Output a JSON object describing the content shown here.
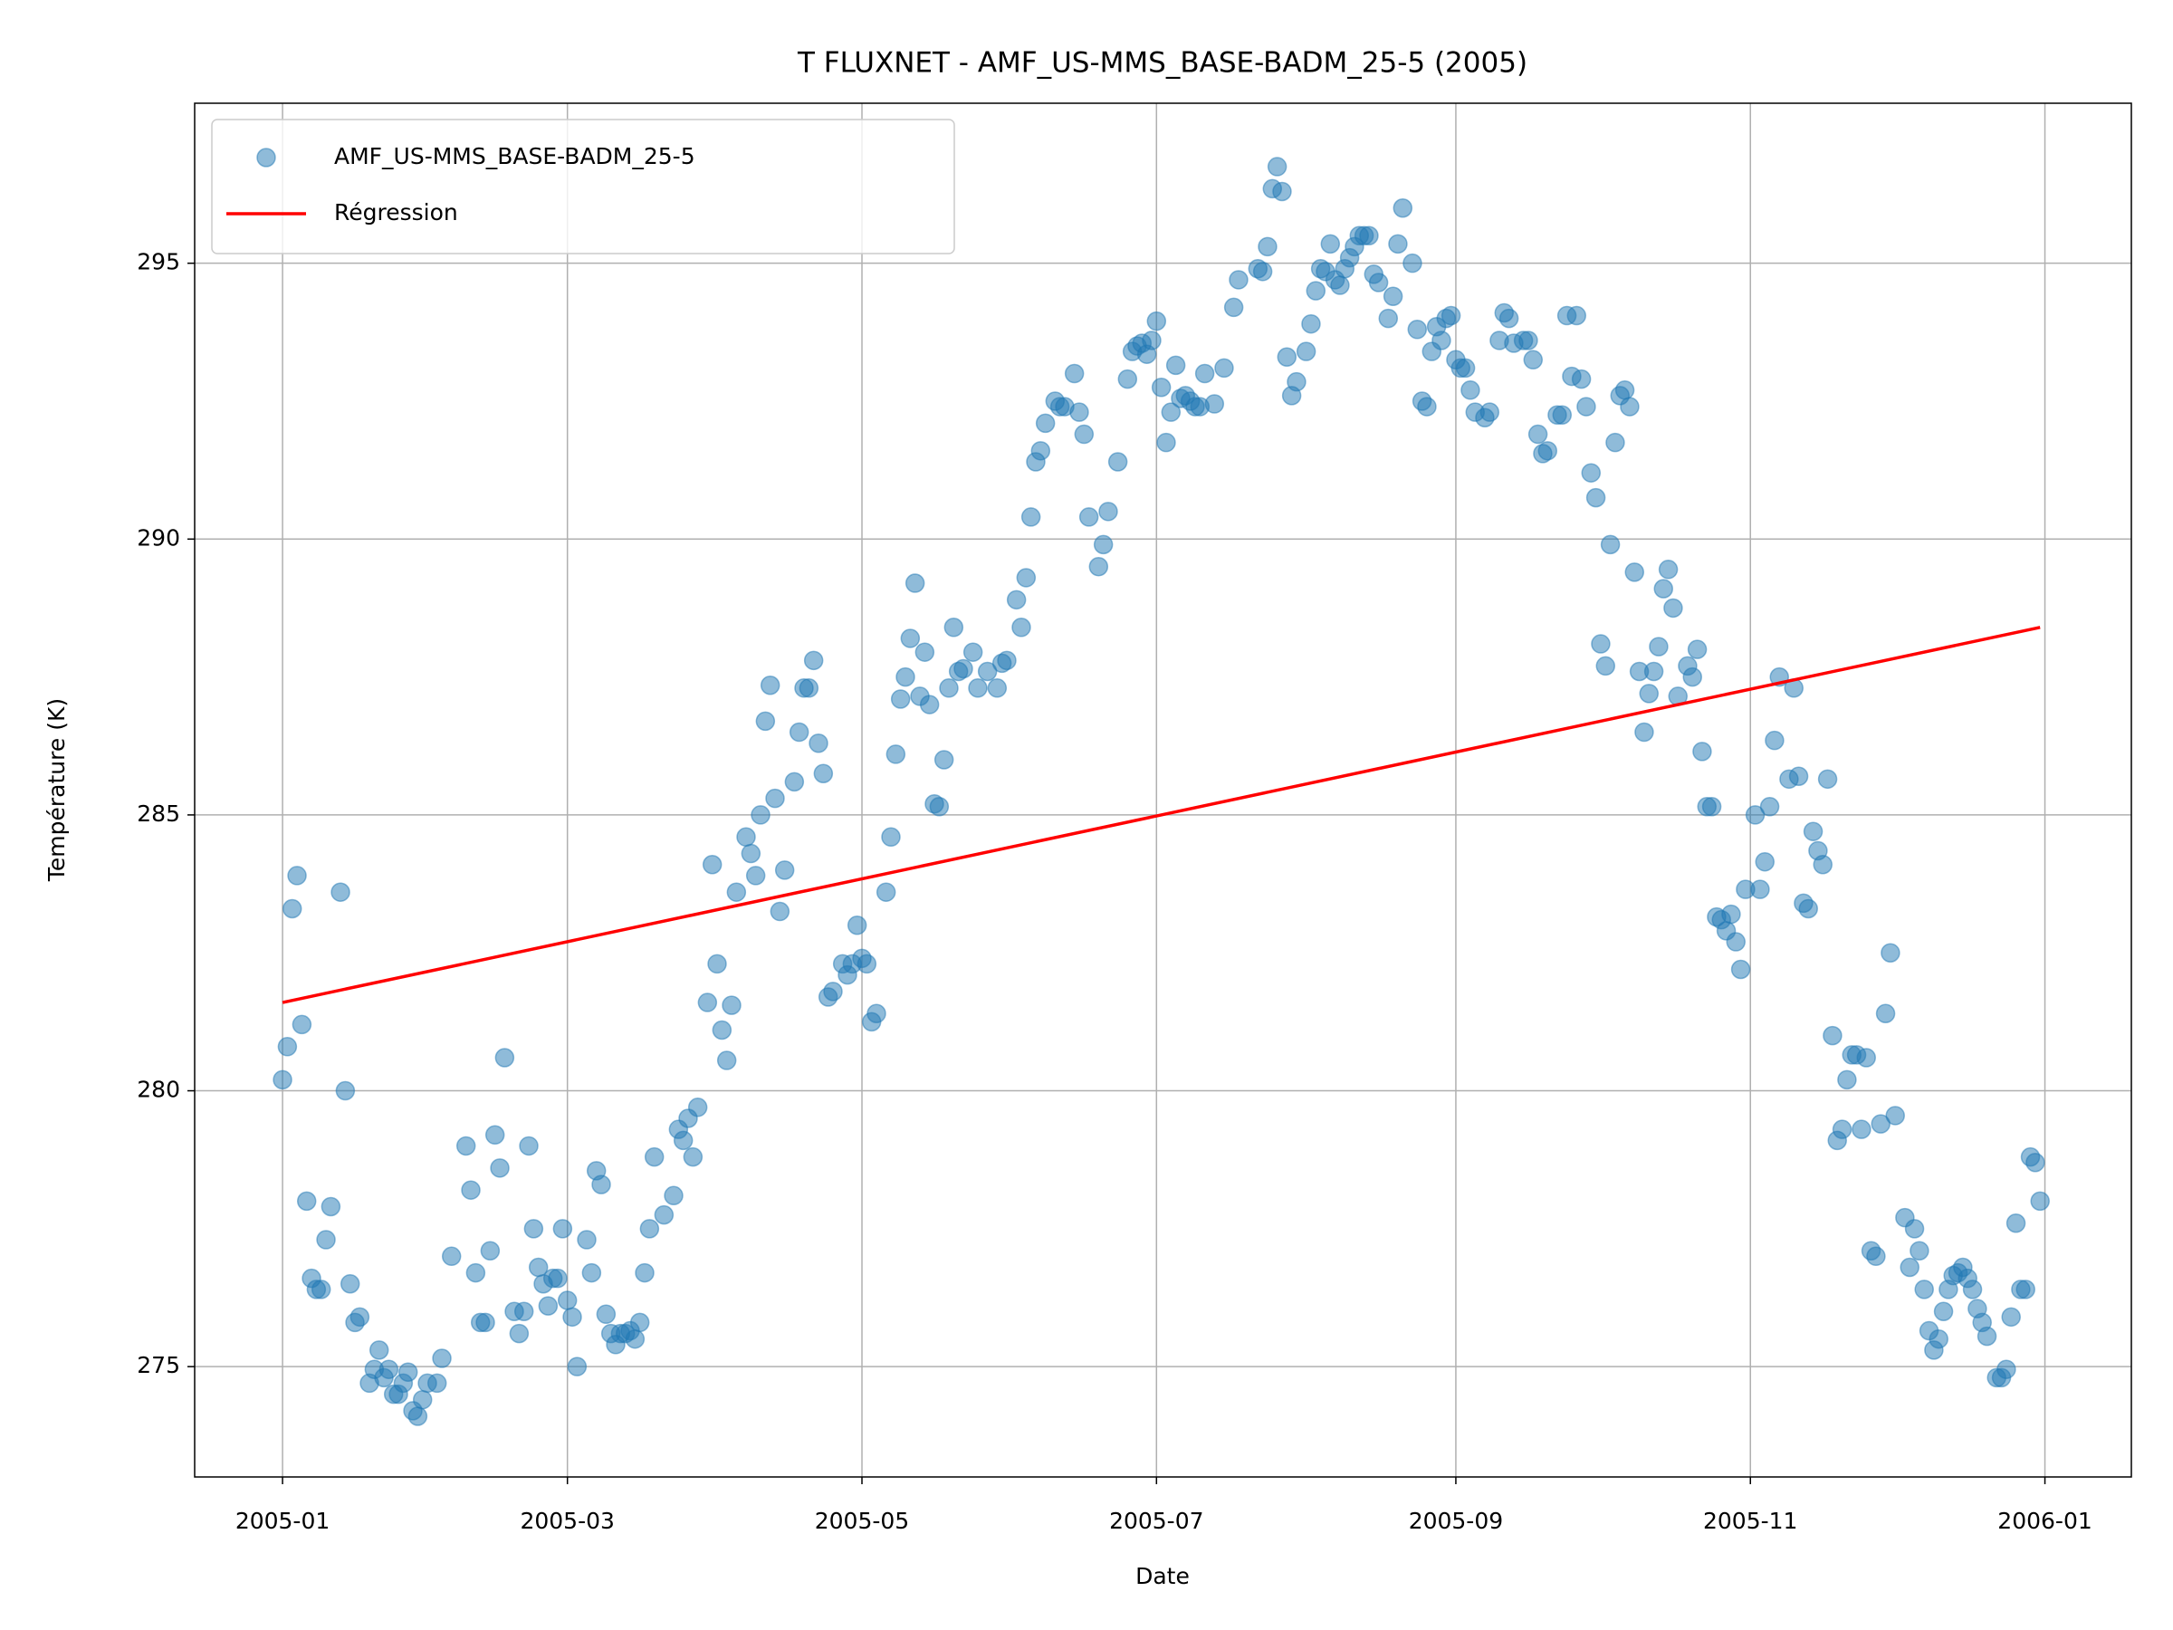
{
  "chart_data": {
    "type": "scatter",
    "title": "T FLUXNET - AMF_US-MMS_BASE-BADM_25-5 (2005)",
    "xlabel": "Date",
    "ylabel": "Température (K)",
    "xlim": [
      -18.2,
      382.9
    ],
    "ylim": [
      273.0,
      297.9
    ],
    "xticks": [
      {
        "value": 0,
        "label": "2005-01"
      },
      {
        "value": 59,
        "label": "2005-03"
      },
      {
        "value": 120,
        "label": "2005-05"
      },
      {
        "value": 181,
        "label": "2005-07"
      },
      {
        "value": 243,
        "label": "2005-09"
      },
      {
        "value": 304,
        "label": "2005-11"
      },
      {
        "value": 365,
        "label": "2006-01"
      }
    ],
    "yticks": [
      275,
      280,
      285,
      290,
      295
    ],
    "grid": true,
    "legend": "upper left",
    "series": [
      {
        "name": "AMF_US-MMS_BASE-BADM_25-5",
        "color": "#1f77b4",
        "x": [
          0,
          1,
          2,
          3,
          4,
          5,
          6,
          7,
          8,
          9,
          10,
          12,
          13,
          14,
          15,
          16,
          18,
          19,
          20,
          21,
          22,
          23,
          24,
          25,
          26,
          27,
          28,
          29,
          30,
          32,
          33,
          35,
          38,
          39,
          40,
          41,
          42,
          43,
          44,
          45,
          46,
          48,
          49,
          50,
          51,
          52,
          53,
          54,
          55,
          56,
          57,
          58,
          59,
          60,
          61,
          63,
          64,
          65,
          66,
          67,
          68,
          69,
          70,
          71,
          72,
          73,
          74,
          75,
          76,
          77,
          79,
          81,
          82,
          83,
          84,
          85,
          86,
          88,
          89,
          90,
          91,
          92,
          93,
          94,
          96,
          97,
          98,
          99,
          100,
          101,
          102,
          103,
          104,
          106,
          107,
          108,
          109,
          110,
          111,
          112,
          113,
          114,
          116,
          117,
          118,
          119,
          120,
          121,
          122,
          123,
          125,
          126,
          127,
          128,
          129,
          130,
          131,
          132,
          133,
          134,
          135,
          136,
          137,
          138,
          139,
          140,
          141,
          143,
          144,
          146,
          148,
          149,
          150,
          152,
          153,
          154,
          155,
          156,
          157,
          158,
          160,
          161,
          162,
          164,
          165,
          166,
          167,
          169,
          170,
          171,
          173,
          175,
          176,
          177,
          178,
          179,
          180,
          181,
          182,
          183,
          184,
          185,
          186,
          187,
          188,
          189,
          190,
          191,
          193,
          195,
          197,
          198,
          202,
          203,
          204,
          205,
          206,
          207,
          208,
          209,
          210,
          212,
          213,
          214,
          215,
          216,
          217,
          218,
          219,
          220,
          221,
          222,
          223,
          224,
          225,
          226,
          227,
          229,
          230,
          231,
          232,
          234,
          235,
          236,
          237,
          238,
          239,
          240,
          241,
          242,
          243,
          244,
          245,
          246,
          247,
          249,
          250,
          252,
          253,
          254,
          255,
          257,
          258,
          259,
          260,
          261,
          262,
          264,
          265,
          266,
          267,
          268,
          269,
          270,
          271,
          272,
          273,
          274,
          275,
          276,
          277,
          278,
          279,
          280,
          281,
          282,
          283,
          284,
          285,
          286,
          287,
          288,
          289,
          291,
          292,
          293,
          294,
          295,
          296,
          297,
          298,
          299,
          300,
          301,
          302,
          303,
          305,
          306,
          307,
          308,
          309,
          310,
          312,
          313,
          314,
          315,
          316,
          317,
          318,
          319,
          320,
          321,
          322,
          323,
          324,
          325,
          326,
          327,
          328,
          329,
          330,
          331,
          332,
          333,
          334,
          336,
          337,
          338,
          339,
          340,
          341,
          342,
          343,
          344,
          345,
          346,
          347,
          348,
          349,
          350,
          351,
          352,
          353,
          355,
          356,
          357,
          358,
          359,
          360,
          361,
          362,
          363,
          364
        ],
        "values": [
          280.2,
          280.8,
          283.3,
          283.9,
          281.2,
          278.0,
          276.6,
          276.4,
          276.4,
          277.3,
          277.9,
          283.6,
          280.0,
          276.5,
          275.8,
          275.9,
          274.7,
          274.95,
          275.3,
          274.8,
          274.95,
          274.5,
          274.5,
          274.7,
          274.9,
          274.2,
          274.1,
          274.4,
          274.7,
          274.7,
          275.15,
          277.0,
          279.0,
          278.2,
          276.7,
          275.8,
          275.8,
          277.1,
          279.2,
          278.6,
          280.6,
          276.0,
          275.6,
          276.0,
          279.0,
          277.5,
          276.8,
          276.5,
          276.1,
          276.6,
          276.6,
          277.5,
          276.2,
          275.9,
          275.0,
          277.3,
          276.7,
          278.55,
          278.3,
          275.95,
          275.6,
          275.4,
          275.6,
          275.6,
          275.65,
          275.5,
          275.8,
          276.7,
          277.5,
          278.8,
          277.75,
          278.1,
          279.3,
          279.1,
          279.5,
          278.8,
          279.7,
          281.6,
          284.1,
          282.3,
          281.1,
          280.55,
          281.55,
          283.6,
          284.6,
          284.3,
          283.9,
          285.0,
          286.7,
          287.35,
          285.3,
          283.25,
          284.0,
          285.6,
          286.5,
          287.3,
          287.3,
          287.8,
          286.3,
          285.75,
          281.7,
          281.8,
          282.3,
          282.1,
          282.3,
          283.0,
          282.4,
          282.3,
          281.25,
          281.4,
          283.6,
          284.6,
          286.1,
          287.1,
          287.5,
          288.2,
          289.2,
          287.15,
          287.95,
          287.0,
          285.2,
          285.15,
          286.0,
          287.3,
          288.4,
          287.6,
          287.65,
          287.95,
          287.3,
          287.6,
          287.3,
          287.75,
          287.8,
          288.9,
          288.4,
          289.3,
          290.4,
          291.4,
          291.6,
          292.1,
          292.5,
          292.4,
          292.4,
          293.0,
          292.3,
          291.9,
          290.4,
          289.5,
          289.9,
          290.5,
          291.4,
          292.9,
          293.4,
          293.5,
          293.55,
          293.35,
          293.6,
          293.95,
          292.75,
          291.75,
          292.3,
          293.15,
          292.55,
          292.6,
          292.5,
          292.4,
          292.4,
          293.0,
          292.45,
          293.1,
          294.2,
          294.7,
          294.9,
          294.85,
          295.3,
          296.35,
          296.75,
          296.3,
          293.3,
          292.6,
          292.85,
          293.4,
          293.9,
          294.5,
          294.9,
          294.85,
          295.35,
          294.7,
          294.6,
          294.9,
          295.1,
          295.3,
          295.5,
          295.5,
          295.5,
          294.8,
          294.65,
          294.0,
          294.4,
          295.35,
          296.0,
          295.0,
          293.8,
          292.5,
          292.4,
          293.4,
          293.85,
          293.6,
          294.0,
          294.05,
          293.25,
          293.1,
          293.1,
          292.7,
          292.3,
          292.2,
          292.3,
          293.6,
          294.1,
          294.0,
          293.55,
          293.6,
          293.6,
          293.25,
          291.9,
          291.55,
          291.6,
          292.25,
          292.25,
          294.05,
          292.95,
          294.05,
          292.9,
          292.4,
          291.2,
          290.75,
          288.1,
          287.7,
          289.9,
          291.75,
          292.6,
          292.7,
          292.4,
          289.4,
          287.6,
          286.5,
          287.2,
          287.6,
          288.05,
          289.1,
          289.45,
          288.75,
          287.15,
          287.7,
          287.5,
          288.0,
          286.15,
          285.15,
          285.15,
          283.15,
          283.1,
          282.9,
          283.2,
          282.7,
          282.2,
          283.65,
          285.0,
          283.65,
          284.15,
          285.15,
          286.35,
          287.5,
          285.65,
          287.3,
          285.7,
          283.4,
          283.3,
          284.7,
          284.35,
          284.1,
          285.65,
          281.0,
          279.1,
          279.3,
          280.2,
          280.65,
          280.65,
          279.3,
          280.6,
          277.1,
          277.0,
          279.4,
          281.4,
          282.5,
          279.55,
          277.7,
          276.8,
          277.5,
          277.1,
          276.4,
          275.65,
          275.3,
          275.5,
          276.0,
          276.4,
          276.65,
          276.7,
          276.8,
          276.6,
          276.4,
          276.05,
          275.8,
          275.55,
          274.8,
          274.8,
          274.95,
          275.9,
          277.6,
          276.4,
          276.4,
          278.8,
          278.7,
          278.0
        ]
      },
      {
        "name": "Régression",
        "color": "#ff0000",
        "type": "line",
        "x": [
          0,
          364
        ],
        "values": [
          281.6,
          288.4
        ]
      }
    ]
  }
}
